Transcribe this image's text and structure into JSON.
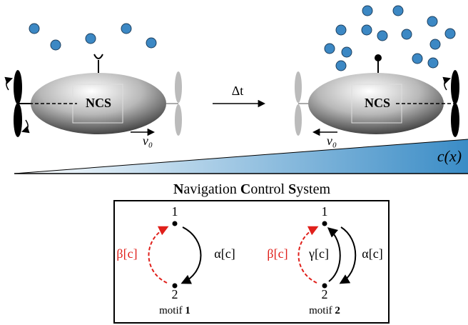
{
  "top": {
    "left_robot": {
      "label": "NCS",
      "velocity": "v₀"
    },
    "time_step": "Δt",
    "right_robot": {
      "label": "NCS",
      "velocity": "v₀"
    },
    "gradient_label": "c(x)"
  },
  "ncs": {
    "title": "Navigation Control System",
    "motifs": [
      {
        "node_top": "1",
        "node_bottom": "2",
        "forward": "α[c]",
        "backward": "β[c]",
        "word": "motif",
        "number": "1"
      },
      {
        "node_top": "1",
        "node_bottom": "2",
        "forward": "α[c]",
        "reverse": "γ[c]",
        "backward": "β[c]",
        "word": "motif",
        "number": "2"
      }
    ]
  }
}
